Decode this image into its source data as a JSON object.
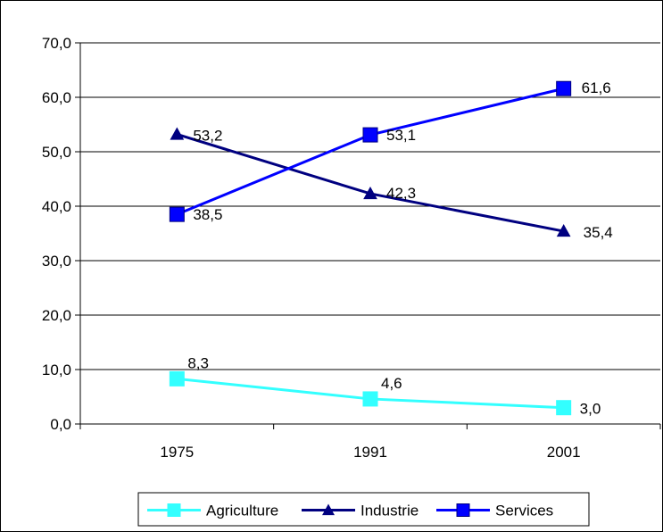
{
  "chart_data": {
    "type": "line",
    "categories": [
      "1975",
      "1991",
      "2001"
    ],
    "ylim": [
      0,
      70
    ],
    "yticks": [
      "0,0",
      "10,0",
      "20,0",
      "30,0",
      "40,0",
      "50,0",
      "60,0",
      "70,0"
    ],
    "grid": true,
    "legend_position": "bottom",
    "series": [
      {
        "name": "Agriculture",
        "values": [
          8.3,
          4.6,
          3.0
        ],
        "labels": [
          "8,3",
          "4,6",
          "3,0"
        ],
        "color": "#33FFFF",
        "marker": "square"
      },
      {
        "name": "Industrie",
        "values": [
          53.2,
          42.3,
          35.4
        ],
        "labels": [
          "53,2",
          "42,3",
          "35,4"
        ],
        "color": "#000080",
        "marker": "triangle"
      },
      {
        "name": "Services",
        "values": [
          38.5,
          53.1,
          61.6
        ],
        "labels": [
          "38,5",
          "53,1",
          "61,6"
        ],
        "color": "#0000FF",
        "marker": "square"
      }
    ]
  }
}
